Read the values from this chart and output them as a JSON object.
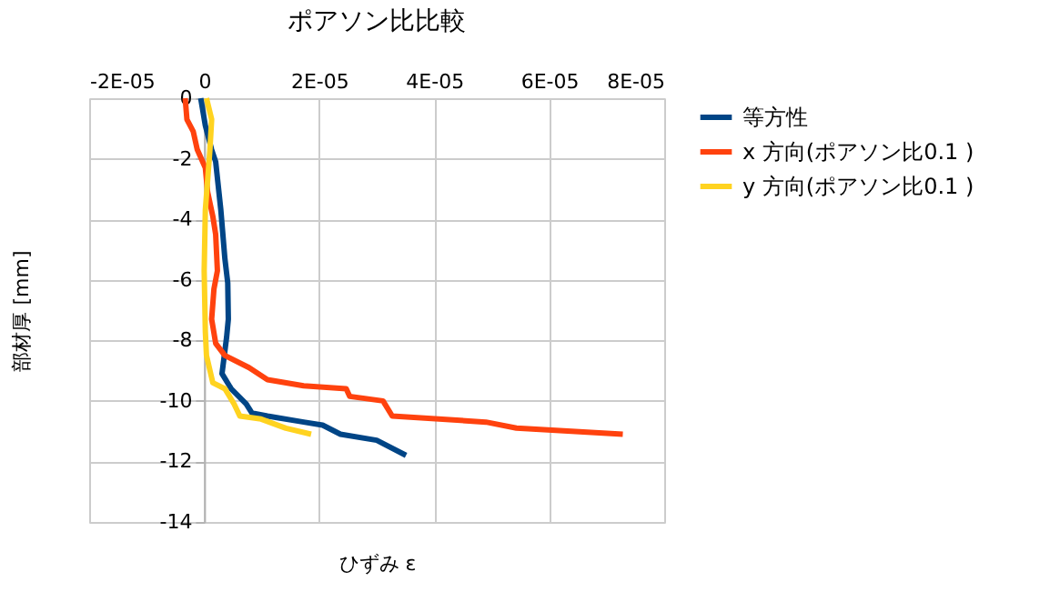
{
  "chart_data": {
    "type": "line",
    "title": "ポアソン比比較",
    "xlabel": "ひずみ ε",
    "ylabel": "部材厚 [mm]",
    "xlim": [
      -2e-05,
      8e-05
    ],
    "xticks": [
      {
        "value": -2e-05,
        "label": "-2E-05"
      },
      0,
      {
        "value": 2e-05,
        "label": "2E-05"
      },
      {
        "value": 4e-05,
        "label": "4E-05"
      },
      {
        "value": 6e-05,
        "label": "6E-05"
      },
      {
        "value": 8e-05,
        "label": "8E-05"
      }
    ],
    "ylim": [
      -14,
      0
    ],
    "yticks": [
      0,
      -2,
      -4,
      -6,
      -8,
      -10,
      -12,
      -14
    ],
    "grid": true,
    "legend": "right",
    "marker": "none",
    "line_style": "solid",
    "series": [
      {
        "name": "等方性",
        "color": "#004586",
        "x": [
          -6e-07,
          2e-07,
          1.3e-06,
          2e-06,
          2.9e-06,
          3.6e-06,
          4.1e-06,
          4.2e-06,
          3.9e-06,
          3.1e-06,
          4.7e-06,
          7.3e-06,
          8.3e-06,
          1.1e-05,
          1.73e-05,
          2.06e-05,
          2.37e-05,
          3e-05,
          3.51e-05
        ],
        "values": [
          0,
          -0.9,
          -1.7,
          -2.1,
          -3.7,
          -5.3,
          -6.1,
          -7.3,
          -7.9,
          -9.1,
          -9.6,
          -10.1,
          -10.4,
          -10.5,
          -10.7,
          -10.8,
          -11.1,
          -11.3,
          -11.8
        ]
      },
      {
        "name": "x 方向(ポアソン比0.1 )",
        "color": "#ff420e",
        "x": [
          -3.3e-06,
          -3e-06,
          -1.9e-06,
          -1.2e-06,
          2e-07,
          6e-07,
          1.5e-06,
          2e-06,
          2.3e-06,
          1.7e-06,
          1.3e-06,
          2e-06,
          3.6e-06,
          7.8e-06,
          1.1e-05,
          1.73e-05,
          2.47e-05,
          2.53e-05,
          3.11e-05,
          3.27e-05,
          4.9e-05,
          5.43e-05,
          7.28e-05
        ],
        "values": [
          0,
          -0.7,
          -1.1,
          -1.7,
          -2.3,
          -3.1,
          -3.9,
          -4.5,
          -5.7,
          -6.3,
          -7.3,
          -8.1,
          -8.5,
          -8.9,
          -9.3,
          -9.5,
          -9.6,
          -9.85,
          -10.0,
          -10.5,
          -10.7,
          -10.9,
          -11.1
        ]
      },
      {
        "name": "y 方向(ポアソン比0.1 )",
        "color": "#ffd320",
        "x": [
          4e-07,
          1.3e-06,
          1e-06,
          2e-07,
          0,
          2e-07,
          4e-07,
          1.5e-06,
          3.6e-06,
          5.2e-06,
          6.2e-06,
          9.9e-06,
          1.42e-05,
          1.86e-05
        ],
        "values": [
          0,
          -0.7,
          -1.7,
          -3.7,
          -5.7,
          -7.7,
          -8.5,
          -9.4,
          -9.6,
          -10.1,
          -10.5,
          -10.6,
          -10.9,
          -11.1
        ]
      }
    ]
  }
}
